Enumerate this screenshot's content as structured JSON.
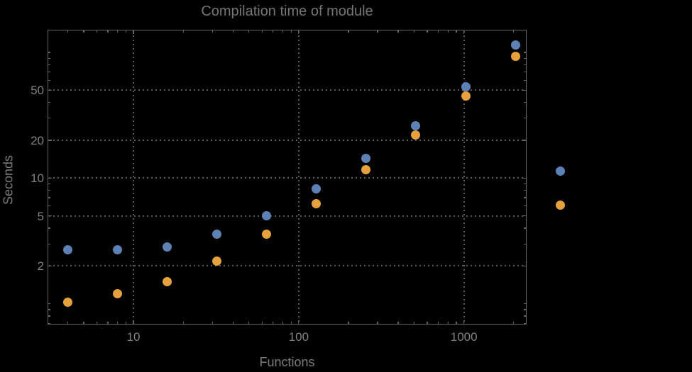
{
  "page": {
    "background": "#000000"
  },
  "colors": {
    "series_blue": "#5e81b5",
    "series_orange": "#e6a13c",
    "frame": "#636363",
    "grid": "#5c5c5c",
    "title_text": "#757575",
    "axis_label_text": "#7b7b7b",
    "tick_label_text": "#828282"
  },
  "chart_data": {
    "type": "scatter",
    "title": "Compilation time of module",
    "xlabel": "Functions",
    "ylabel": "Seconds",
    "x_scale": "log",
    "y_scale": "log",
    "grid": "dotted major gridlines only",
    "xlim": [
      3.05,
      2372
    ],
    "ylim": [
      0.694,
      149.6
    ],
    "x": [
      4,
      8,
      16,
      32,
      64,
      128,
      256,
      512,
      1024,
      2048
    ],
    "series": [
      {
        "name": "blue",
        "color": "#5e81b5",
        "values": [
          2.7,
          2.7,
          2.85,
          3.6,
          5.0,
          8.2,
          14.3,
          26,
          53,
          114
        ]
      },
      {
        "name": "orange",
        "color": "#e6a13c",
        "values": [
          1.03,
          1.2,
          1.5,
          2.2,
          3.6,
          6.3,
          11.7,
          22,
          45,
          93
        ]
      }
    ],
    "x_ticks": {
      "major": [
        10,
        100,
        1000
      ],
      "labels": [
        "10",
        "100",
        "1000"
      ],
      "minor": [
        4,
        5,
        6,
        7,
        8,
        9,
        20,
        30,
        40,
        50,
        60,
        70,
        80,
        90,
        200,
        300,
        400,
        500,
        600,
        700,
        800,
        900,
        2000
      ]
    },
    "y_ticks": {
      "major": [
        2,
        5,
        10,
        20,
        50
      ],
      "labels": [
        "2",
        "5",
        "10",
        "20",
        "50"
      ],
      "minor": [
        0.7,
        0.8,
        0.9,
        1,
        3,
        4,
        6,
        7,
        8,
        9,
        30,
        40,
        60,
        70,
        80,
        90,
        100
      ]
    },
    "legend": {
      "position": "outside-right",
      "labels_visible": false,
      "marker_colors": [
        "#5e81b5",
        "#e6a13c"
      ]
    }
  }
}
